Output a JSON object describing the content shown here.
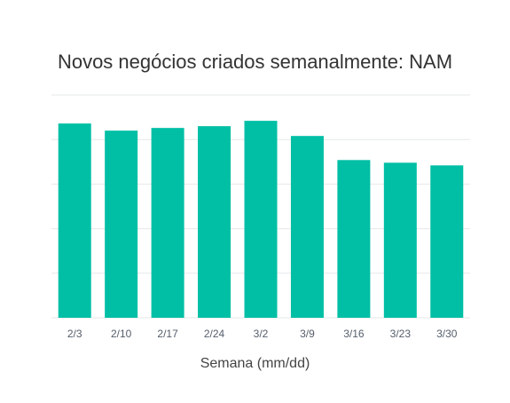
{
  "chart_data": {
    "type": "bar",
    "title": "Novos negócios criados semanalmente: NAM",
    "xlabel": "Semana (mm/dd)",
    "ylabel": "",
    "categories": [
      "2/3",
      "2/10",
      "2/17",
      "2/24",
      "3/2",
      "3/9",
      "3/16",
      "3/23",
      "3/30"
    ],
    "values": [
      4.36,
      4.2,
      4.26,
      4.3,
      4.42,
      4.08,
      3.54,
      3.48,
      3.42
    ],
    "ylim": [
      0,
      5
    ],
    "grid": true,
    "legend": "none",
    "bar_color": "#00bfa5",
    "grid_color": "#e6e8ea"
  }
}
